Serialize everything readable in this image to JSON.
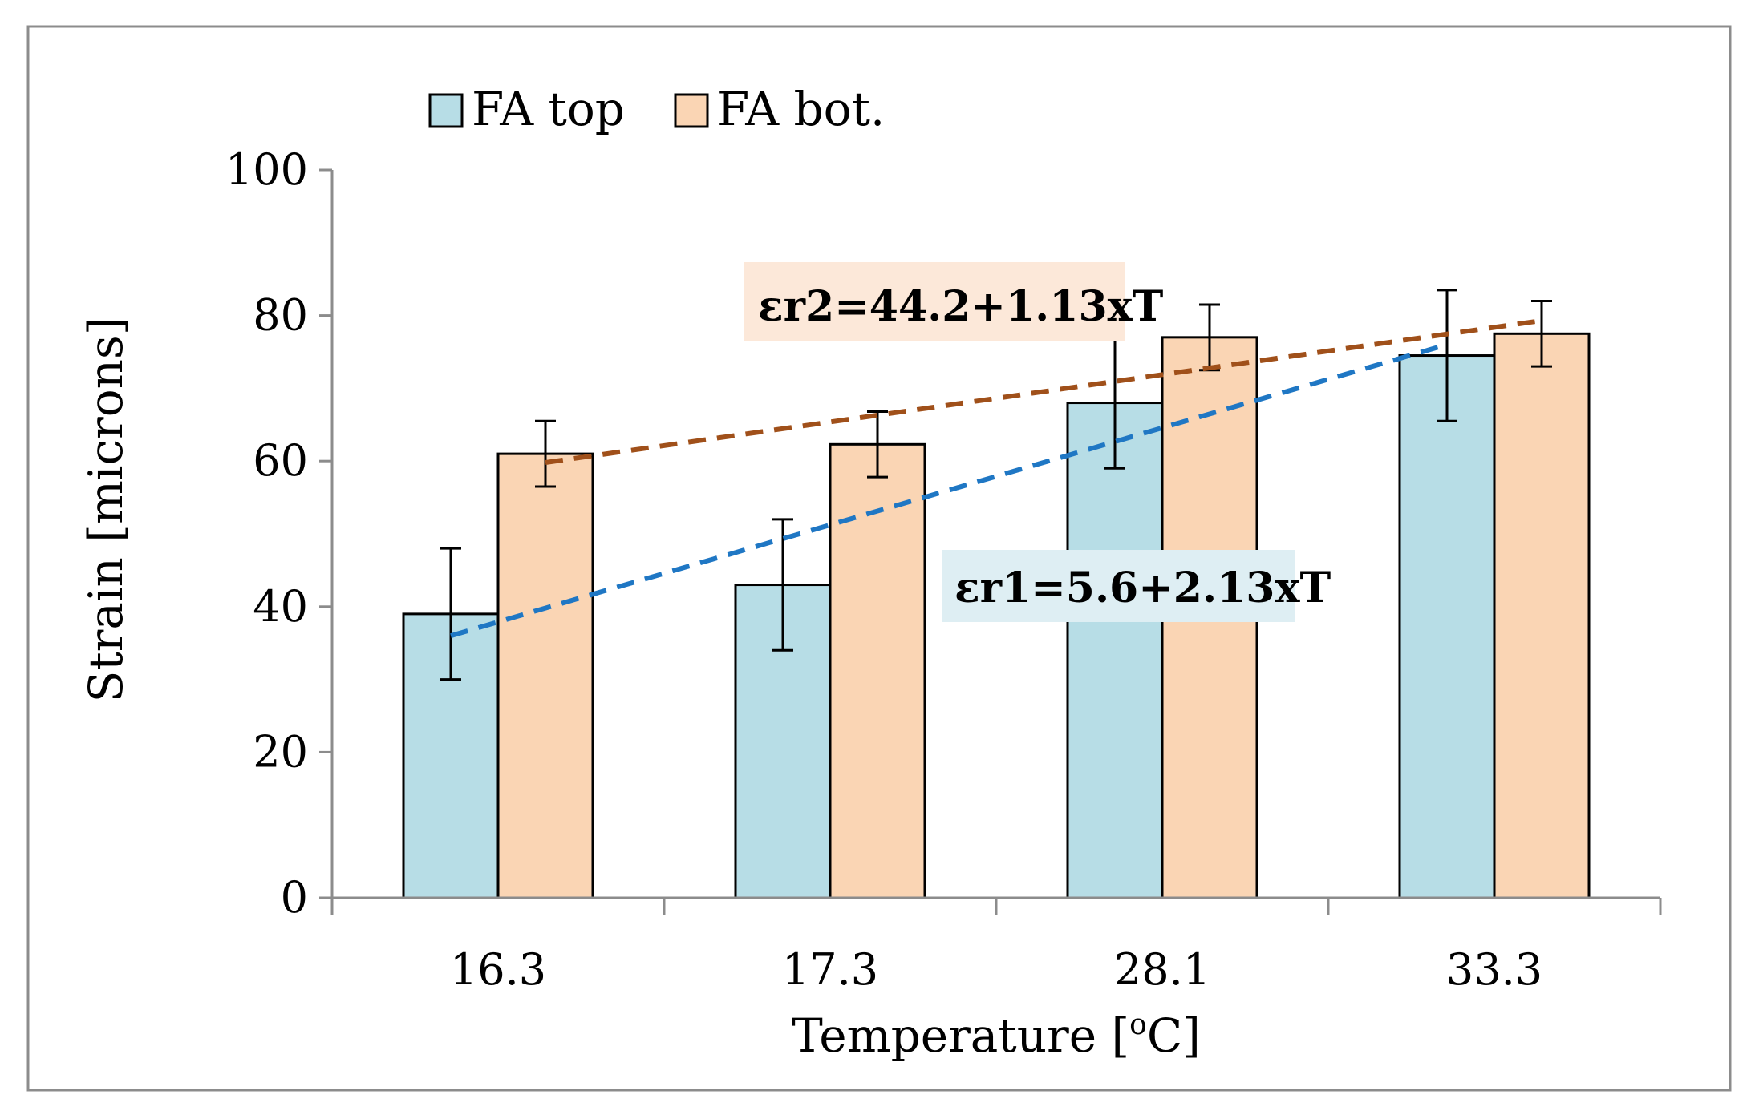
{
  "chart_data": {
    "type": "bar",
    "categories": [
      "16.3",
      "17.3",
      "28.1",
      "33.3"
    ],
    "series": [
      {
        "name": "FA top",
        "color": "#b7dde6",
        "values": [
          39,
          43,
          68,
          74.5
        ],
        "error": [
          9,
          9,
          9,
          9
        ]
      },
      {
        "name": "FA bot.",
        "color": "#fad5b4",
        "values": [
          61,
          62.3,
          77,
          77.5
        ],
        "error": [
          4.5,
          4.5,
          4.5,
          4.5
        ]
      }
    ],
    "xlabel": "Temperature [",
    "xlabel_super": "o",
    "xlabel_end": "C]",
    "ylabel": "Strain [microns]",
    "ylim": [
      0,
      100
    ],
    "yticks": [
      0,
      20,
      40,
      60,
      80,
      100
    ],
    "grid": false,
    "legend": "top-left",
    "trendlines": [
      {
        "series": "FA top",
        "equation": "εr1=5.6+2.13xT",
        "color": "#1f77c4",
        "label_bg": "#deeef3",
        "start_value": 36,
        "end_value": 76
      },
      {
        "series": "FA bot.",
        "equation": "εr2=44.2+1.13xT",
        "color": "#a0501a",
        "label_bg": "#fce8d9",
        "start_value": 59.8,
        "end_value": 79.3
      }
    ]
  }
}
